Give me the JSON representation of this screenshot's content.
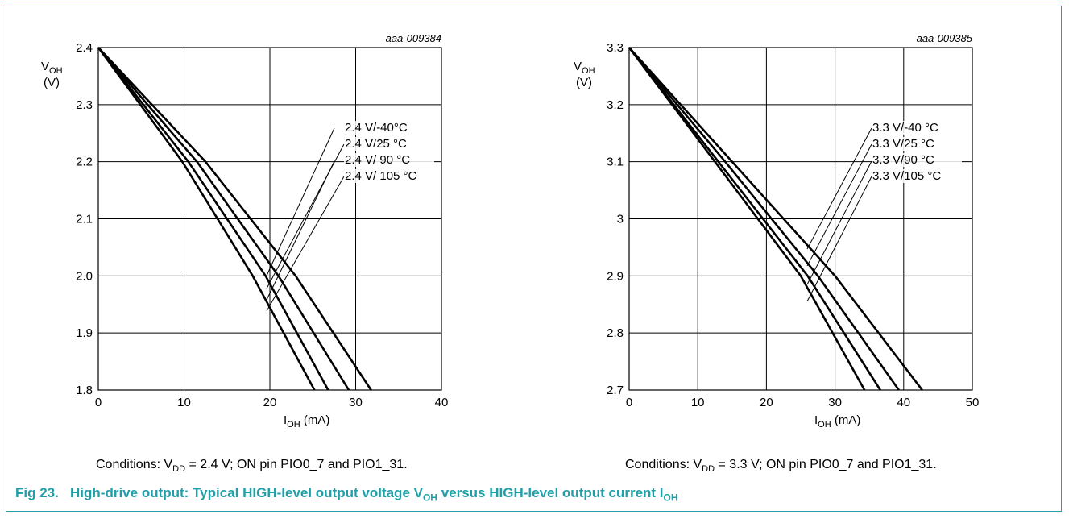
{
  "figure": {
    "label": "Fig 23.",
    "title_a": "High-drive output: Typical HIGH-level output voltage V",
    "title_sub1": "OH",
    "title_b": " versus HIGH-level output current I",
    "title_sub2": "OH"
  },
  "charts": [
    {
      "conditions": {
        "prefix": "Conditions: V",
        "sub": "DD",
        "suffix": " = 2.4 V; ON pin PIO0_7 and PIO1_31."
      }
    },
    {
      "conditions": {
        "prefix": "Conditions: V",
        "sub": "DD",
        "suffix": " = 3.3 V; ON pin PIO0_7 and PIO1_31."
      }
    }
  ],
  "chart_data": [
    {
      "type": "line",
      "figure_id": "aaa-009384",
      "xlabel": {
        "main": "I",
        "sub": "OH",
        "unit": " (mA)"
      },
      "ylabel": {
        "main": "V",
        "sub": "OH",
        "unit": "(V)"
      },
      "xlim": [
        0,
        40
      ],
      "ylim": [
        1.8,
        2.4
      ],
      "xticks": [
        0,
        10,
        20,
        30,
        40
      ],
      "yticks": [
        1.8,
        1.9,
        2.0,
        2.1,
        2.2,
        2.3,
        2.4
      ],
      "grid": true,
      "series": [
        {
          "name": "2.4 V/-40°C",
          "x": [
            0,
            12.5,
            23,
            31.8
          ],
          "y": [
            2.4,
            2.2,
            2.0,
            1.8
          ]
        },
        {
          "name": "2.4 V/25 °C",
          "x": [
            0,
            11.5,
            21,
            29.2
          ],
          "y": [
            2.4,
            2.2,
            2.0,
            1.8
          ]
        },
        {
          "name": "2.4 V/ 90 °C",
          "x": [
            0,
            10.5,
            19.5,
            26.8
          ],
          "y": [
            2.4,
            2.2,
            2.0,
            1.8
          ]
        },
        {
          "name": "2.4 V/ 105 °C",
          "x": [
            0,
            9.8,
            18,
            25.2
          ],
          "y": [
            2.4,
            2.2,
            2.0,
            1.8
          ]
        }
      ]
    },
    {
      "type": "line",
      "figure_id": "aaa-009385",
      "xlabel": {
        "main": "I",
        "sub": "OH",
        "unit": " (mA)"
      },
      "ylabel": {
        "main": "V",
        "sub": "OH",
        "unit": "(V)"
      },
      "xlim": [
        0,
        50
      ],
      "ylim": [
        2.7,
        3.3
      ],
      "xticks": [
        0,
        10,
        20,
        30,
        40,
        50
      ],
      "yticks": [
        2.7,
        2.8,
        2.9,
        3.0,
        3.1,
        3.2,
        3.3
      ],
      "yticklabels": [
        "2.7",
        "2.8",
        "2.9",
        "3",
        "3.1",
        "3.2",
        "3.3"
      ],
      "grid": true,
      "series": [
        {
          "name": "3.3 V/-40 °C",
          "x": [
            0,
            15,
            30,
            42.7
          ],
          "y": [
            3.3,
            3.1,
            2.9,
            2.7
          ]
        },
        {
          "name": "3.3 V/25 °C",
          "x": [
            0,
            14,
            27.5,
            39.3
          ],
          "y": [
            3.3,
            3.1,
            2.9,
            2.7
          ]
        },
        {
          "name": "3.3 V/90 °C",
          "x": [
            0,
            13,
            26,
            36.6
          ],
          "y": [
            3.3,
            3.1,
            2.9,
            2.7
          ]
        },
        {
          "name": "3.3 V/105 °C",
          "x": [
            0,
            12.5,
            25,
            34.3
          ],
          "y": [
            3.3,
            3.1,
            2.9,
            2.7
          ]
        }
      ]
    }
  ]
}
